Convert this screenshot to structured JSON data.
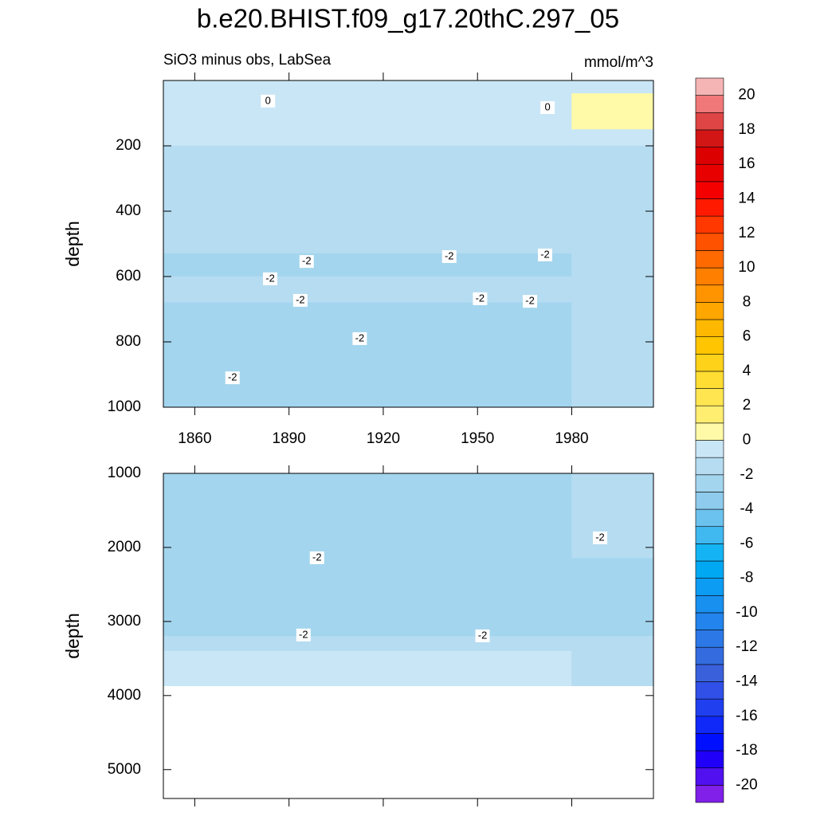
{
  "chart_data": {
    "type": "contour",
    "title": "b.e20.BHIST.f09_g17.20thC.297_05",
    "subtitle": "SiO3 minus obs, LabSea",
    "units": "mmol/m^3",
    "y_label": "depth",
    "xlim": [
      1850,
      2006
    ],
    "xticks": [
      1860,
      1890,
      1920,
      1950,
      1980
    ],
    "levels": [
      -20,
      -19,
      -18,
      -17,
      -16,
      -15,
      -14,
      -13,
      -12,
      -11,
      -10,
      -9,
      -8,
      -7,
      -6,
      -5,
      -4,
      -3,
      -2,
      -1,
      0,
      1,
      2,
      3,
      4,
      5,
      6,
      7,
      8,
      9,
      10,
      11,
      12,
      13,
      14,
      15,
      16,
      17,
      18,
      19,
      20
    ],
    "colors": [
      "#8020e8",
      "#5010f0",
      "#2000f8",
      "#0010ff",
      "#1028f8",
      "#2040f0",
      "#3050e8",
      "#3a60dc",
      "#346ce0",
      "#2c78e6",
      "#2284ec",
      "#1890f0",
      "#0c9cf4",
      "#00a8f4",
      "#14b4f4",
      "#40b8f0",
      "#6cc2ee",
      "#8ecbec",
      "#a3d5ee",
      "#b5dcf1",
      "#c9e6f6",
      "#fffaa8",
      "#ffee70",
      "#ffe650",
      "#ffdd33",
      "#ffd21a",
      "#ffc500",
      "#ffb800",
      "#ffa700",
      "#ff9300",
      "#ff7f00",
      "#ff6a00",
      "#ff5200",
      "#ff3800",
      "#ff1a00",
      "#f40000",
      "#e80000",
      "#dc0000",
      "#d21616",
      "#e04545",
      "#f07878",
      "#f6b5b5"
    ],
    "colorbar_ticks": [
      -20,
      -18,
      -16,
      -14,
      -12,
      -10,
      -8,
      -6,
      -4,
      -2,
      0,
      2,
      4,
      6,
      8,
      10,
      12,
      14,
      16,
      18,
      20
    ],
    "panels": [
      {
        "ylim": [
          0,
          1000
        ],
        "yticks": [
          200,
          400,
          600,
          800,
          1000
        ],
        "year_edges": [
          1850,
          1980,
          2006
        ],
        "depth_edges": [
          0,
          40,
          150,
          200,
          530,
          600,
          680,
          1000
        ],
        "values": [
          [
            -0.5,
            -0.5
          ],
          [
            -0.5,
            0.5
          ],
          [
            -0.5,
            -0.5
          ],
          [
            -1.5,
            -1.5
          ],
          [
            -2.5,
            -1.5
          ],
          [
            -1.5,
            -1.5
          ],
          [
            -2.5,
            -1.5
          ]
        ],
        "contour_labels": [
          {
            "value": 0,
            "x": 1883.3,
            "y": 63
          },
          {
            "value": 0,
            "x": 1972.3,
            "y": 83
          },
          {
            "value": -2,
            "x": 1895.6,
            "y": 554
          },
          {
            "value": -2,
            "x": 1884,
            "y": 607
          },
          {
            "value": -2,
            "x": 1893.6,
            "y": 673
          },
          {
            "value": -2,
            "x": 1912.5,
            "y": 790
          },
          {
            "value": -2,
            "x": 1872,
            "y": 910
          },
          {
            "value": -2,
            "x": 1941,
            "y": 539
          },
          {
            "value": -2,
            "x": 1971.5,
            "y": 534
          },
          {
            "value": -2,
            "x": 1950.8,
            "y": 668
          },
          {
            "value": -2,
            "x": 1966.7,
            "y": 676
          }
        ]
      },
      {
        "ylim": [
          1000,
          5390
        ],
        "yticks": [
          1000,
          2000,
          3000,
          4000,
          5000
        ],
        "year_edges": [
          1850,
          1980,
          2006
        ],
        "depth_edges": [
          1000,
          2150,
          3200,
          3400,
          3870
        ],
        "values": [
          [
            -2.5,
            -1.5
          ],
          [
            -2.5,
            -2.5
          ],
          [
            -1.5,
            -1.5
          ],
          [
            -0.5,
            -1.5
          ]
        ],
        "contour_labels": [
          {
            "value": -2,
            "x": 1898.9,
            "y": 2140
          },
          {
            "value": -2,
            "x": 1989,
            "y": 1871
          },
          {
            "value": -2,
            "x": 1894.6,
            "y": 3183
          },
          {
            "value": -2,
            "x": 1951.6,
            "y": 3194
          }
        ]
      }
    ]
  }
}
